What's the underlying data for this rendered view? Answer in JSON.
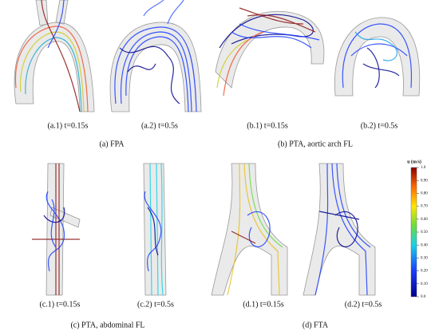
{
  "panels": [
    {
      "label": "(a.1) t=0.15s"
    },
    {
      "label": "(a.2) t=0.5s"
    },
    {
      "label": "(b.1) t=0.15s"
    },
    {
      "label": "(b.2) t=0.5s"
    },
    {
      "label": "(c.1) t=0.15s"
    },
    {
      "label": "(c.2) t=0.5s"
    },
    {
      "label": "(d.1) t=0.15s"
    },
    {
      "label": "(d.2) t=0.5s"
    }
  ],
  "captions": [
    "(a) FPA",
    "(b) PTA, aortic arch FL",
    "(c) PTA, abdominal FL",
    "(d) FTA"
  ],
  "colorbar": {
    "title": "u (m/s)",
    "lim": [
      0,
      1
    ],
    "ticks": [
      {
        "value": 1,
        "label": "1.0"
      },
      {
        "value": 0.9,
        "label": "0.90"
      },
      {
        "value": 0.8,
        "label": "0.80"
      },
      {
        "value": 0.7,
        "label": "0.70"
      },
      {
        "value": 0.6,
        "label": "0.60"
      },
      {
        "value": 0.5,
        "label": "0.50"
      },
      {
        "value": 0.4,
        "label": "0.40"
      },
      {
        "value": 0.3,
        "label": "0.30"
      },
      {
        "value": 0.2,
        "label": "0.20"
      },
      {
        "value": 0.1,
        "label": "0.10"
      },
      {
        "value": 0,
        "label": "0.0"
      }
    ]
  }
}
